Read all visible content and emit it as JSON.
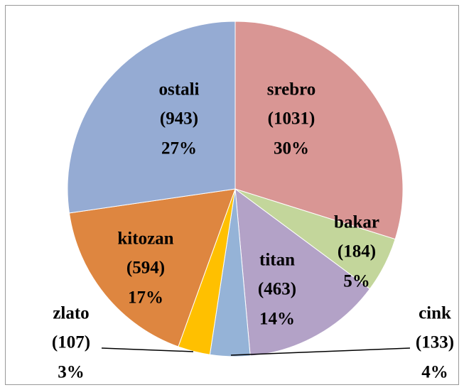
{
  "chart_data": {
    "type": "pie",
    "categories": [
      "srebro",
      "bakar",
      "titan",
      "cink",
      "zlato",
      "kitozan",
      "ostali"
    ],
    "values": [
      1031,
      184,
      463,
      133,
      107,
      594,
      943
    ],
    "value_labels": [
      "(1031)",
      "(184)",
      "(463)",
      "(133)",
      "(107)",
      "(594)",
      "(943)"
    ],
    "percents": [
      30,
      5,
      14,
      4,
      3,
      17,
      27
    ],
    "percent_labels": [
      "30%",
      "5%",
      "14%",
      "4%",
      "3%",
      "17%",
      "27%"
    ],
    "colors": [
      "#d99694",
      "#c3d69b",
      "#b3a2c7",
      "#95b3d7",
      "#ffc000",
      "#de8640",
      "#95abd3"
    ]
  }
}
